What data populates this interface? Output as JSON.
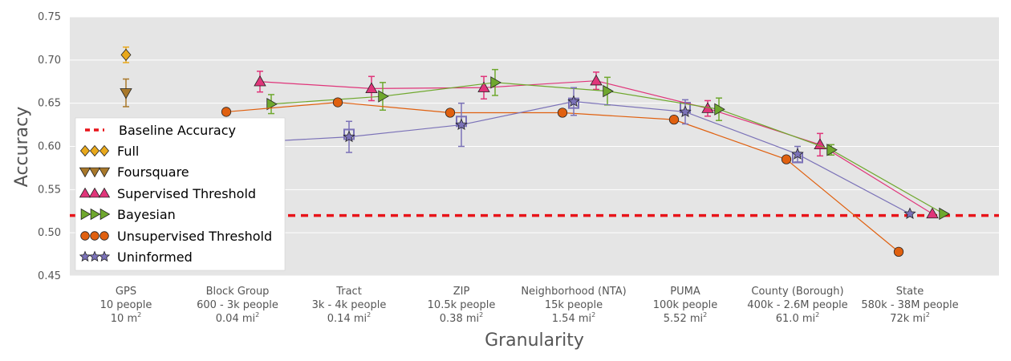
{
  "chart_data": {
    "type": "line",
    "xlabel": "Granularity",
    "ylabel": "Accuracy",
    "ylim": [
      0.45,
      0.75
    ],
    "yticks": [
      "0.45",
      "0.50",
      "0.55",
      "0.60",
      "0.65",
      "0.70",
      "0.75"
    ],
    "grid": true,
    "legend_position": "left",
    "categories": [
      {
        "lines": [
          "GPS",
          "10 people"
        ],
        "area_num": "10 m",
        "area_sup": "2"
      },
      {
        "lines": [
          "Block Group",
          "600 - 3k people"
        ],
        "area_num": "0.04 mi",
        "area_sup": "2"
      },
      {
        "lines": [
          "Tract",
          "3k - 4k people"
        ],
        "area_num": "0.14 mi",
        "area_sup": "2"
      },
      {
        "lines": [
          "ZIP",
          "10.5k people"
        ],
        "area_num": "0.38 mi",
        "area_sup": "2"
      },
      {
        "lines": [
          "Neighborhood (NTA)",
          "15k people"
        ],
        "area_num": "1.54 mi",
        "area_sup": "2"
      },
      {
        "lines": [
          "PUMA",
          "100k people"
        ],
        "area_num": "5.52 mi",
        "area_sup": "2"
      },
      {
        "lines": [
          "County (Borough)",
          "400k - 2.6M people"
        ],
        "area_num": "61.0 mi",
        "area_sup": "2"
      },
      {
        "lines": [
          "State",
          "580k - 38M people"
        ],
        "area_num": "72k mi",
        "area_sup": "2"
      }
    ],
    "baseline": {
      "name": "Baseline Accuracy",
      "value": 0.52,
      "color": "#e8141a"
    },
    "series": [
      {
        "name": "Full",
        "marker": "diamond",
        "color": "#e8a81c",
        "points": [
          {
            "x": 0,
            "y": 0.706,
            "err": 0.009
          }
        ]
      },
      {
        "name": "Foursquare",
        "marker": "triangle-down",
        "color": "#a8782a",
        "points": [
          {
            "x": 0,
            "y": 0.662,
            "err": 0.016
          }
        ]
      },
      {
        "name": "Supervised Threshold",
        "marker": "triangle-up",
        "color": "#e0357a",
        "points": [
          {
            "x": 1,
            "y": 0.675,
            "err": 0.012
          },
          {
            "x": 2,
            "y": 0.667,
            "err": 0.014
          },
          {
            "x": 3,
            "y": 0.668,
            "err": 0.013
          },
          {
            "x": 4,
            "y": 0.676,
            "err": 0.01
          },
          {
            "x": 5,
            "y": 0.644,
            "err": 0.009
          },
          {
            "x": 6,
            "y": 0.602,
            "err": 0.013
          },
          {
            "x": 7,
            "y": 0.522,
            "err": 0
          }
        ]
      },
      {
        "name": "Bayesian",
        "marker": "triangle-right",
        "color": "#6fa82e",
        "points": [
          {
            "x": 1,
            "y": 0.649,
            "err": 0.011
          },
          {
            "x": 2,
            "y": 0.658,
            "err": 0.016
          },
          {
            "x": 3,
            "y": 0.674,
            "err": 0.015
          },
          {
            "x": 4,
            "y": 0.664,
            "err": 0.016
          },
          {
            "x": 5,
            "y": 0.643,
            "err": 0.013
          },
          {
            "x": 6,
            "y": 0.596,
            "err": 0.006
          },
          {
            "x": 7,
            "y": 0.522,
            "err": 0
          }
        ]
      },
      {
        "name": "Unsupervised Threshold",
        "marker": "circle",
        "color": "#e0600f",
        "points": [
          {
            "x": 1,
            "y": 0.64,
            "err": 0
          },
          {
            "x": 2,
            "y": 0.651,
            "err": 0
          },
          {
            "x": 3,
            "y": 0.639,
            "err": 0
          },
          {
            "x": 4,
            "y": 0.639,
            "err": 0
          },
          {
            "x": 5,
            "y": 0.631,
            "err": 0
          },
          {
            "x": 6,
            "y": 0.585,
            "err": 0
          },
          {
            "x": 7,
            "y": 0.478,
            "err": 0
          }
        ]
      },
      {
        "name": "Uninformed",
        "marker": "star",
        "color": "#7b72b8",
        "points": [
          {
            "x": 1,
            "y": 0.604,
            "err": 0.02
          },
          {
            "x": 2,
            "y": 0.611,
            "err": 0.018
          },
          {
            "x": 3,
            "y": 0.625,
            "err": 0.025
          },
          {
            "x": 4,
            "y": 0.652,
            "err": 0.016
          },
          {
            "x": 5,
            "y": 0.64,
            "err": 0.014
          },
          {
            "x": 6,
            "y": 0.591,
            "err": 0.009
          },
          {
            "x": 7,
            "y": 0.522,
            "err": 0
          }
        ]
      }
    ],
    "open_squares": {
      "color": "#7b72b8",
      "points": [
        {
          "x": 2,
          "y": 0.614
        },
        {
          "x": 3,
          "y": 0.629
        },
        {
          "x": 4,
          "y": 0.65
        },
        {
          "x": 5,
          "y": 0.645
        },
        {
          "x": 6,
          "y": 0.587
        }
      ]
    }
  }
}
